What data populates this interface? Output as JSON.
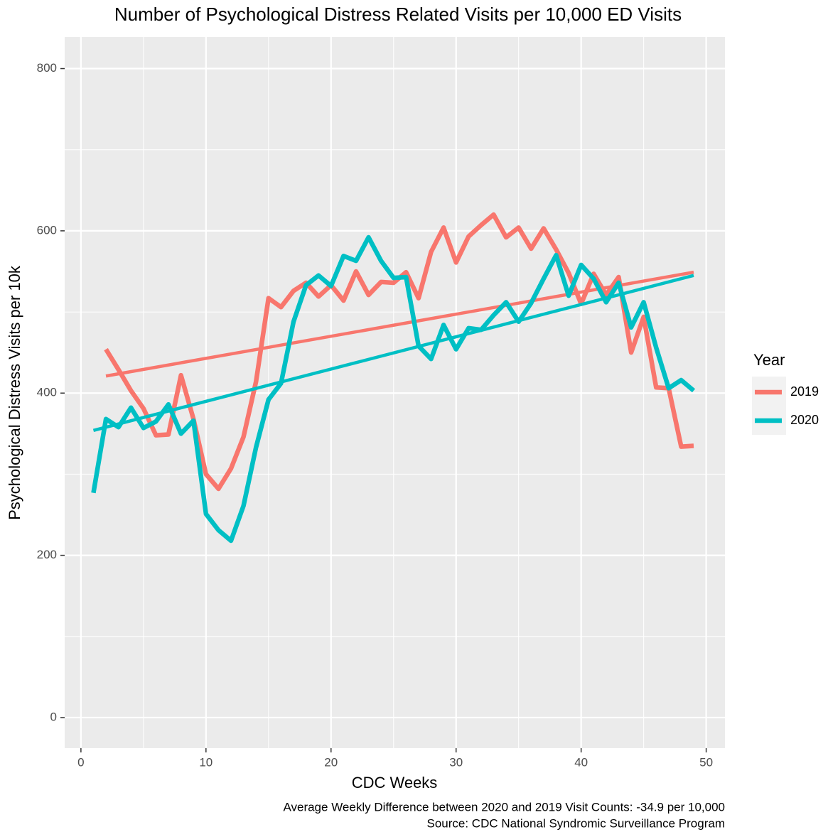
{
  "chart_data": {
    "type": "line",
    "title": "Number of Psychological Distress Related Visits per 10,000 ED Visits",
    "x_label": "CDC Weeks",
    "y_label": "Psychological Distress Visits per 10k",
    "captions": [
      "Average Weekly Difference between 2020 and 2019 Visit Counts: -34.9 per 10,000",
      "Source: CDC National Syndromic Surveillance Program"
    ],
    "legend_title": "Year",
    "legend_position": "right",
    "grid": true,
    "xlim": [
      -1.3,
      51.5
    ],
    "xticks": [
      0,
      10,
      20,
      30,
      40,
      50
    ],
    "xminor_ticks": [
      5,
      15,
      25,
      35,
      45
    ],
    "ylim": [
      -37.7,
      839
    ],
    "yticks": [
      0,
      200,
      400,
      600,
      800
    ],
    "yminor_ticks": [
      100,
      300,
      500,
      700
    ],
    "series": [
      {
        "name": "2019",
        "color": "#F8766D",
        "x": [
          2,
          3,
          4,
          5,
          6,
          7,
          8,
          9,
          10,
          11,
          12,
          13,
          14,
          15,
          16,
          17,
          18,
          19,
          20,
          21,
          22,
          23,
          24,
          25,
          26,
          27,
          28,
          29,
          30,
          31,
          32,
          33,
          34,
          35,
          36,
          37,
          38,
          39,
          40,
          41,
          42,
          43,
          44,
          45,
          46,
          47,
          48,
          49
        ],
        "values": [
          454,
          429,
          403,
          381,
          348,
          349,
          422,
          368,
          300,
          282,
          307,
          346,
          414,
          517,
          506,
          526,
          536,
          519,
          533,
          514,
          550,
          521,
          537,
          536,
          549,
          517,
          574,
          604,
          561,
          593,
          607,
          620,
          592,
          604,
          578,
          603,
          577,
          548,
          510,
          547,
          521,
          543,
          450,
          494,
          407,
          406,
          334,
          335
        ],
        "trend_x": [
          2,
          49
        ],
        "trend_values": [
          421,
          549
        ]
      },
      {
        "name": "2020",
        "color": "#00BFC4",
        "x": [
          1,
          2,
          3,
          4,
          5,
          6,
          7,
          8,
          9,
          10,
          11,
          12,
          13,
          14,
          15,
          16,
          17,
          18,
          19,
          20,
          21,
          22,
          23,
          24,
          25,
          26,
          27,
          28,
          29,
          30,
          31,
          32,
          33,
          34,
          35,
          36,
          37,
          38,
          39,
          40,
          41,
          42,
          43,
          44,
          45,
          46,
          47,
          48,
          49
        ],
        "values": [
          277,
          368,
          358,
          382,
          357,
          365,
          386,
          350,
          366,
          251,
          231,
          218,
          261,
          333,
          392,
          412,
          488,
          533,
          545,
          532,
          569,
          563,
          592,
          563,
          542,
          543,
          458,
          442,
          484,
          454,
          480,
          478,
          496,
          512,
          488,
          511,
          541,
          570,
          520,
          558,
          541,
          512,
          536,
          481,
          512,
          456,
          406,
          416,
          403
        ],
        "trend_x": [
          1,
          49
        ],
        "trend_values": [
          354,
          545
        ]
      }
    ]
  }
}
